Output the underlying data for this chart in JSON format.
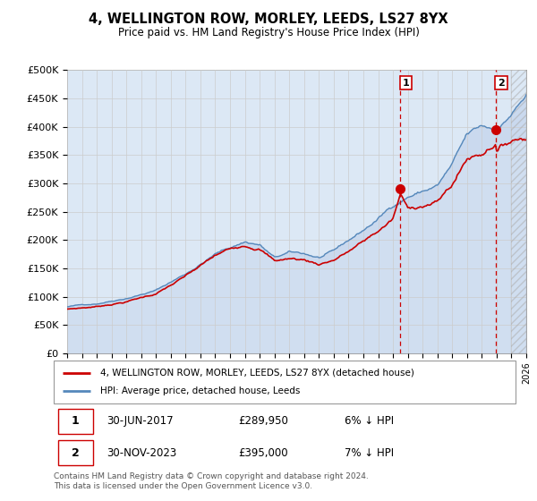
{
  "title": "4, WELLINGTON ROW, MORLEY, LEEDS, LS27 8YX",
  "subtitle": "Price paid vs. HM Land Registry's House Price Index (HPI)",
  "ylabel_ticks": [
    "£0",
    "£50K",
    "£100K",
    "£150K",
    "£200K",
    "£250K",
    "£300K",
    "£350K",
    "£400K",
    "£450K",
    "£500K"
  ],
  "ytick_values": [
    0,
    50000,
    100000,
    150000,
    200000,
    250000,
    300000,
    350000,
    400000,
    450000,
    500000
  ],
  "xlim_start": 1995.0,
  "xlim_end": 2026.0,
  "ylim": [
    0,
    500000
  ],
  "marker1_x": 2017.5,
  "marker1_y": 289950,
  "marker2_x": 2023.917,
  "marker2_y": 395000,
  "legend_line1": "4, WELLINGTON ROW, MORLEY, LEEDS, LS27 8YX (detached house)",
  "legend_line2": "HPI: Average price, detached house, Leeds",
  "table_row1": [
    "1",
    "30-JUN-2017",
    "£289,950",
    "6% ↓ HPI"
  ],
  "table_row2": [
    "2",
    "30-NOV-2023",
    "£395,000",
    "7% ↓ HPI"
  ],
  "footer": "Contains HM Land Registry data © Crown copyright and database right 2024.\nThis data is licensed under the Open Government Licence v3.0.",
  "color_red": "#cc0000",
  "color_blue_line": "#5588bb",
  "color_blue_fill": "#c8d8ee",
  "color_grid": "#cccccc",
  "color_bg_plot": "#dce8f5",
  "hatch_start": 2025.0
}
